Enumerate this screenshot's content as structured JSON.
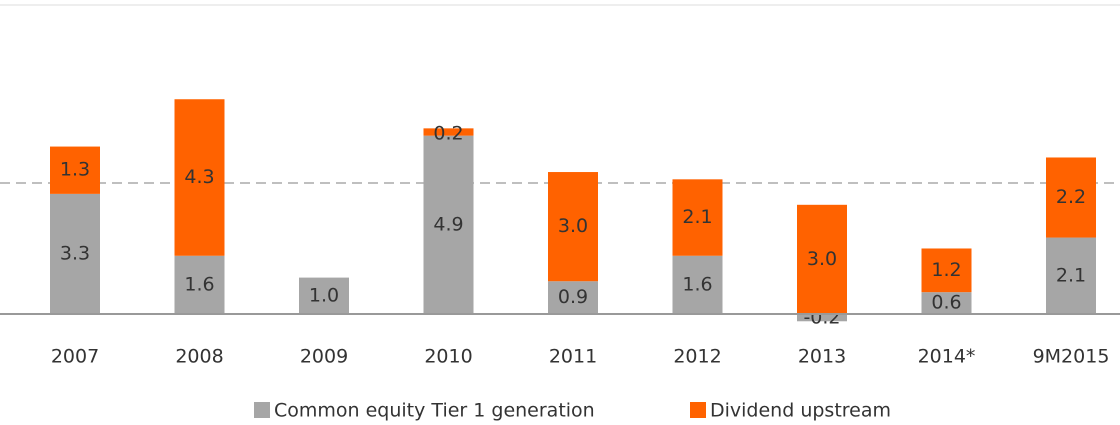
{
  "chart_data": {
    "type": "stacked_bar",
    "categories": [
      "2007",
      "2008",
      "2009",
      "2010",
      "2011",
      "2012",
      "2013",
      "2014*",
      "9M2015"
    ],
    "series": [
      {
        "name": "Common equity Tier 1 generation",
        "color": "#a6a6a6",
        "values": [
          3.3,
          1.6,
          1.0,
          4.9,
          0.9,
          1.6,
          -0.2,
          0.6,
          2.1
        ],
        "value_labels": [
          "3.3",
          "1.6",
          "1.0",
          "4.9",
          "0.9",
          "1.6",
          "-0.2",
          "0.6",
          "2.1"
        ]
      },
      {
        "name": "Dividend upstream",
        "color": "#ff6200",
        "values": [
          1.3,
          4.3,
          null,
          0.2,
          3.0,
          2.1,
          3.0,
          1.2,
          2.2
        ],
        "value_labels": [
          "1.3",
          "4.3",
          null,
          "0.2",
          "3.0",
          "2.1",
          "3.0",
          "1.2",
          "2.2"
        ]
      }
    ],
    "ylim": [
      -0.5,
      8.5
    ],
    "reference_line": 3.6,
    "legend": "bottom"
  }
}
